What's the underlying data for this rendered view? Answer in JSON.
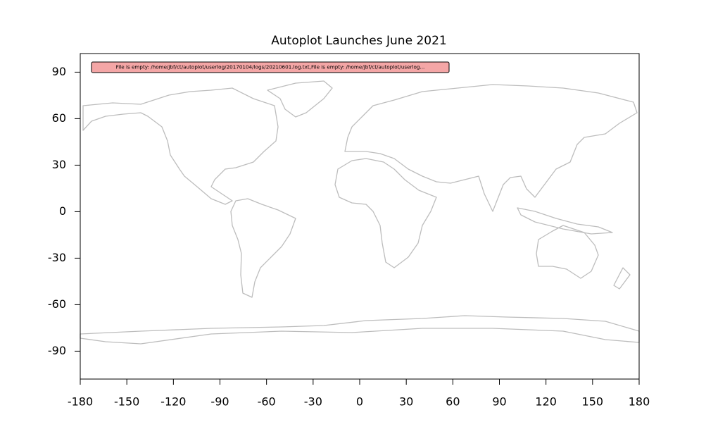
{
  "chart_data": {
    "type": "map",
    "title": "Autoplot Launches June 2021",
    "annotation": "File is empty: /home/jbf/ct/autoplot/userlog/20170104/logs/20210601.log.txt,File is empty: /home/jbf/ct/autoplot/userlog...",
    "x": [],
    "values": [],
    "xlim": [
      -180,
      180
    ],
    "xticks": [
      -180,
      -150,
      -120,
      -90,
      -60,
      -30,
      0,
      30,
      60,
      90,
      120,
      150,
      180
    ],
    "ylim": [
      -108,
      102
    ],
    "yticks": [
      -90,
      -60,
      -30,
      0,
      30,
      60,
      90
    ],
    "grid": false
  }
}
